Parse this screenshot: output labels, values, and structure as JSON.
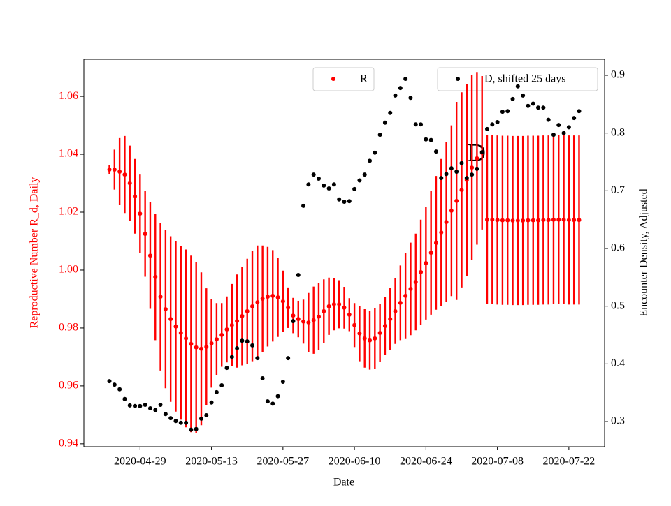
{
  "chart_data": {
    "type": "scatter",
    "xlabel": "Date",
    "ylabel": "Reproductive Number R_d, Daily",
    "y2label": "Encounter Density, Adjusted",
    "annotation": "D",
    "x": [
      "2020-04-23",
      "2020-04-24",
      "2020-04-25",
      "2020-04-26",
      "2020-04-27",
      "2020-04-28",
      "2020-04-29",
      "2020-04-30",
      "2020-05-01",
      "2020-05-02",
      "2020-05-03",
      "2020-05-04",
      "2020-05-05",
      "2020-05-06",
      "2020-05-07",
      "2020-05-08",
      "2020-05-09",
      "2020-05-10",
      "2020-05-11",
      "2020-05-12",
      "2020-05-13",
      "2020-05-14",
      "2020-05-15",
      "2020-05-16",
      "2020-05-17",
      "2020-05-18",
      "2020-05-19",
      "2020-05-20",
      "2020-05-21",
      "2020-05-22",
      "2020-05-23",
      "2020-05-24",
      "2020-05-25",
      "2020-05-26",
      "2020-05-27",
      "2020-05-28",
      "2020-05-29",
      "2020-05-30",
      "2020-05-31",
      "2020-06-01",
      "2020-06-02",
      "2020-06-03",
      "2020-06-04",
      "2020-06-05",
      "2020-06-06",
      "2020-06-07",
      "2020-06-08",
      "2020-06-09",
      "2020-06-10",
      "2020-06-11",
      "2020-06-12",
      "2020-06-13",
      "2020-06-14",
      "2020-06-15",
      "2020-06-16",
      "2020-06-17",
      "2020-06-18",
      "2020-06-19",
      "2020-06-20",
      "2020-06-21",
      "2020-06-22",
      "2020-06-23",
      "2020-06-24",
      "2020-06-25",
      "2020-06-26",
      "2020-06-27",
      "2020-06-28",
      "2020-06-29",
      "2020-06-30",
      "2020-07-01",
      "2020-07-02",
      "2020-07-03",
      "2020-07-04",
      "2020-07-05",
      "2020-07-06",
      "2020-07-07",
      "2020-07-08",
      "2020-07-09",
      "2020-07-10",
      "2020-07-11",
      "2020-07-12",
      "2020-07-13",
      "2020-07-14",
      "2020-07-15",
      "2020-07-16",
      "2020-07-17",
      "2020-07-18",
      "2020-07-19",
      "2020-07-20",
      "2020-07-21",
      "2020-07-22",
      "2020-07-23",
      "2020-07-24"
    ],
    "xlim": [
      "2020-04-18",
      "2020-07-29"
    ],
    "xticks": [
      "2020-04-29",
      "2020-05-13",
      "2020-05-27",
      "2020-06-10",
      "2020-06-24",
      "2020-07-08",
      "2020-07-22"
    ],
    "ylim": [
      0.939,
      1.0728
    ],
    "yticks": [
      0.94,
      0.96,
      0.98,
      {
        "value": 1,
        "label": "1.00"
      },
      1.02,
      1.04,
      1.06
    ],
    "y2lim": [
      0.2565,
      0.9278
    ],
    "y2ticks": [
      0.3,
      0.4,
      0.5,
      0.6,
      0.7,
      0.8,
      0.9
    ],
    "series": [
      {
        "name": "R",
        "color": "#ff0000",
        "values": [
          1.0347,
          1.0347,
          1.034,
          1.033,
          1.03,
          1.0255,
          1.0195,
          1.0125,
          1.005,
          0.9976,
          0.9908,
          0.9865,
          0.9831,
          0.9805,
          0.9783,
          0.9764,
          0.9745,
          0.9733,
          0.9728,
          0.9735,
          0.9747,
          0.9761,
          0.9776,
          0.9795,
          0.981,
          0.9824,
          0.9841,
          0.9858,
          0.9875,
          0.9889,
          0.9901,
          0.9908,
          0.9911,
          0.9906,
          0.9892,
          0.987,
          0.9843,
          0.9831,
          0.9822,
          0.9819,
          0.9827,
          0.9839,
          0.9858,
          0.9875,
          0.9882,
          0.9882,
          0.987,
          0.9846,
          0.981,
          0.9781,
          0.9764,
          0.9757,
          0.9764,
          0.9783,
          0.9807,
          0.9831,
          0.9858,
          0.9887,
          0.9911,
          0.9935,
          0.9959,
          0.9993,
          1.0024,
          1.006,
          1.0094,
          1.013,
          1.0166,
          1.0205,
          1.0239,
          1.0277,
          1.0311,
          1.0354,
          1.0386,
          1.0405,
          1.0174,
          1.0174,
          1.0173,
          1.0172,
          1.0172,
          1.0171,
          1.0171,
          1.0171,
          1.0172,
          1.0172,
          1.0172,
          1.0173,
          1.0173,
          1.0174,
          1.0174,
          1.0174,
          1.0173,
          1.0173,
          1.0173
        ],
        "errors": [
          0.0015,
          0.0069,
          0.0116,
          0.0133,
          0.013,
          0.0129,
          0.0135,
          0.0148,
          0.0184,
          0.0218,
          0.0255,
          0.0273,
          0.0286,
          0.0294,
          0.03,
          0.0307,
          0.0305,
          0.0296,
          0.0264,
          0.0202,
          0.0153,
          0.0125,
          0.011,
          0.0114,
          0.0142,
          0.0161,
          0.017,
          0.0181,
          0.019,
          0.0196,
          0.0184,
          0.0172,
          0.0158,
          0.0137,
          0.0106,
          0.007,
          0.0061,
          0.0063,
          0.0076,
          0.0102,
          0.0116,
          0.0116,
          0.011,
          0.0099,
          0.009,
          0.0083,
          0.0072,
          0.0057,
          0.0076,
          0.0096,
          0.0101,
          0.0101,
          0.0105,
          0.01,
          0.01,
          0.0108,
          0.0113,
          0.0129,
          0.0149,
          0.016,
          0.0167,
          0.0181,
          0.0195,
          0.0214,
          0.0231,
          0.0254,
          0.0276,
          0.0295,
          0.0342,
          0.0337,
          0.0331,
          0.0319,
          0.0298,
          0.0265,
          0.0292,
          0.0292,
          0.0292,
          0.0292,
          0.0292,
          0.0292,
          0.0292,
          0.0292,
          0.0292,
          0.0292,
          0.0292,
          0.0292,
          0.0292,
          0.0292,
          0.0292,
          0.0292,
          0.0292,
          0.0292,
          0.0292
        ]
      },
      {
        "name": "D, shifted 25 days",
        "color": "#000000",
        "axis": "y2",
        "values": [
          0.37,
          0.364,
          0.356,
          0.339,
          0.328,
          0.327,
          0.327,
          0.329,
          0.323,
          0.32,
          0.329,
          0.313,
          0.306,
          0.301,
          0.298,
          0.298,
          0.286,
          0.287,
          0.305,
          0.311,
          0.333,
          0.351,
          0.363,
          0.393,
          0.412,
          0.427,
          0.44,
          0.439,
          0.432,
          0.41,
          0.375,
          0.335,
          0.331,
          0.344,
          0.369,
          0.41,
          0.474,
          0.554,
          0.674,
          0.711,
          0.728,
          0.721,
          0.709,
          0.704,
          0.711,
          0.685,
          0.681,
          0.682,
          0.703,
          0.718,
          0.728,
          0.752,
          0.766,
          0.797,
          0.818,
          0.835,
          0.865,
          0.878,
          0.894,
          0.861,
          0.815,
          0.815,
          0.789,
          0.788,
          0.768,
          0.722,
          0.729,
          0.739,
          0.733,
          0.748,
          0.722,
          0.728,
          0.738,
          0.767,
          0.807,
          0.815,
          0.819,
          0.837,
          0.838,
          0.859,
          0.881,
          0.865,
          0.847,
          0.851,
          0.844,
          0.844,
          0.823,
          0.797,
          0.814,
          0.8,
          0.81,
          0.826,
          0.838
        ]
      }
    ]
  }
}
